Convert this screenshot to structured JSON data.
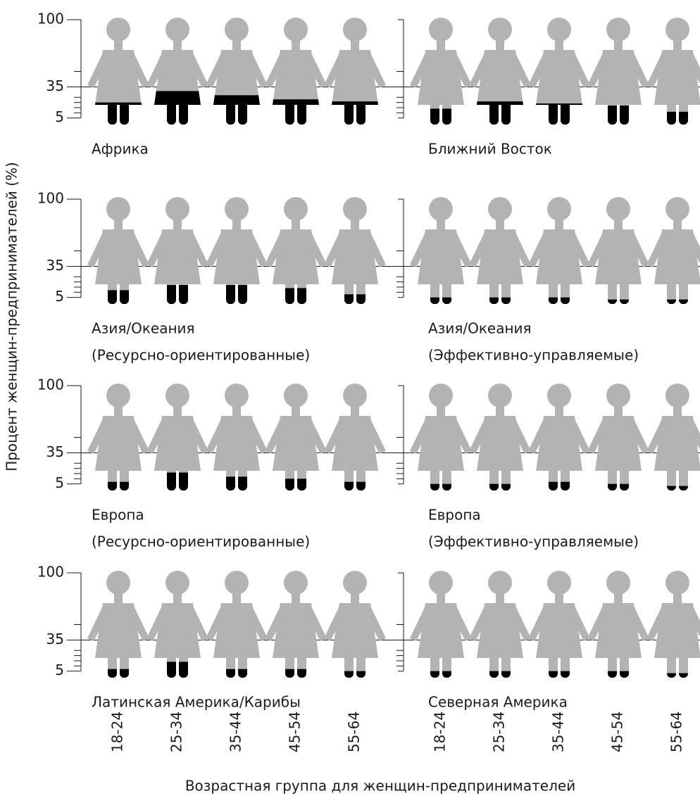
{
  "chart_data": {
    "type": "pictogram",
    "ylabel": "Процент женщин-предпринимателей (%)",
    "xlabel": "Возрастная группа для женщин-предпринимателей",
    "categories": [
      "18-24",
      "25-34",
      "35-44",
      "45-54",
      "55-64"
    ],
    "ylim": [
      0,
      100
    ],
    "yticks": [
      5,
      35,
      100
    ],
    "yminor": [
      10,
      15,
      20,
      25,
      50
    ],
    "reference_line": 35,
    "figure_color": "#b3b3b3",
    "fill_color": "#000000",
    "panels": [
      {
        "title": [
          "Африка"
        ],
        "values": [
          20,
          31,
          27,
          23,
          21
        ]
      },
      {
        "title": [
          "Ближний Восток"
        ],
        "values": [
          14,
          21,
          19,
          17,
          11
        ]
      },
      {
        "title": [
          "Азия/Океания",
          "(Ресурсно-ориентированные)"
        ],
        "values": [
          12,
          17,
          17,
          14,
          8
        ]
      },
      {
        "title": [
          "Азия/Океания",
          "(Эффективно-управляемые)"
        ],
        "values": [
          5,
          5,
          5,
          3,
          3
        ]
      },
      {
        "title": [
          "Европа",
          "(Ресурсно-ориентированные)"
        ],
        "values": [
          7,
          16,
          12,
          10,
          7
        ]
      },
      {
        "title": [
          "Европа",
          "(Эффективно-управляемые)"
        ],
        "values": [
          5,
          5,
          7,
          5,
          3
        ]
      },
      {
        "title": [
          "Латинская Америка/Карибы"
        ],
        "values": [
          7,
          14,
          7,
          7,
          5
        ]
      },
      {
        "title": [
          "Северная Америка"
        ],
        "values": [
          5,
          5,
          5,
          5,
          3
        ]
      }
    ]
  }
}
